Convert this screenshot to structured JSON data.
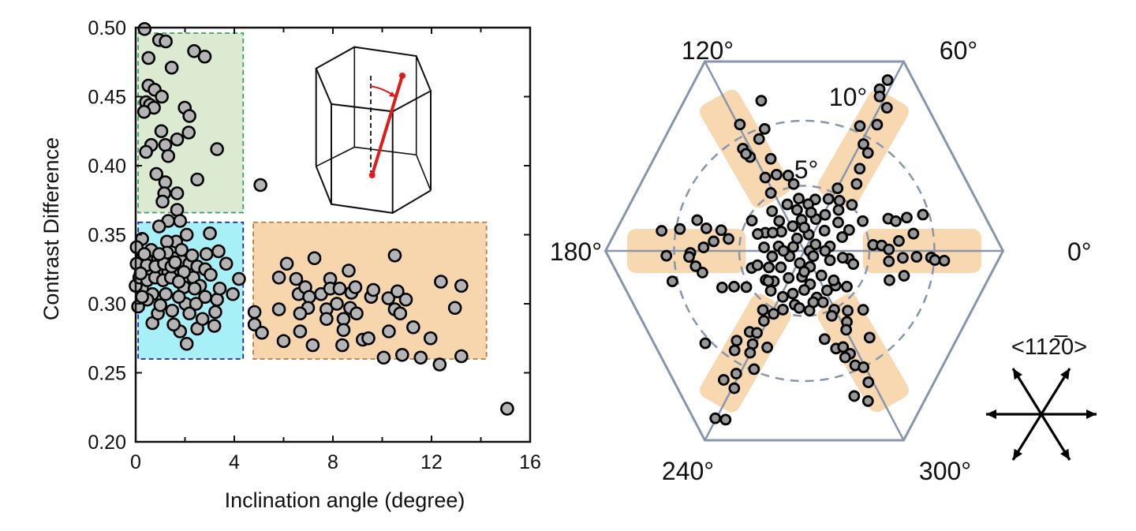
{
  "chart_data": [
    {
      "type": "scatter",
      "xlabel": "Inclination angle (degree)",
      "ylabel": "Contrast Difference",
      "xlim": [
        0,
        16
      ],
      "ylim": [
        0.2,
        0.5
      ],
      "x_ticks": [
        0,
        4,
        8,
        12,
        16
      ],
      "x_minor_ticks": [
        2,
        6,
        10,
        14
      ],
      "y_ticks": [
        "0.20",
        "0.25",
        "0.30",
        "0.35",
        "0.40",
        "0.45",
        "0.50"
      ],
      "grid": false,
      "marker_color": "#b4b4b4",
      "regions": [
        {
          "x": [
            0.1,
            4.36
          ],
          "y": [
            0.366,
            0.496
          ],
          "fill": "#dcead2",
          "stroke": "#3aa55a"
        },
        {
          "x": [
            0.1,
            4.36
          ],
          "y": [
            0.26,
            0.359
          ],
          "fill": "#a8f0f8",
          "stroke": "#1b2a9c"
        },
        {
          "x": [
            4.77,
            14.23
          ],
          "y": [
            0.26,
            0.359
          ],
          "fill": "#f7d6ae",
          "stroke": "#b87c3e"
        }
      ],
      "points": [
        [
          0.36,
          0.499
        ],
        [
          0.95,
          0.491
        ],
        [
          1.22,
          0.49
        ],
        [
          0.52,
          0.478
        ],
        [
          2.37,
          0.483
        ],
        [
          2.8,
          0.479
        ],
        [
          1.46,
          0.471
        ],
        [
          0.52,
          0.458
        ],
        [
          0.77,
          0.455
        ],
        [
          1.06,
          0.45
        ],
        [
          0.42,
          0.446
        ],
        [
          0.58,
          0.444
        ],
        [
          0.74,
          0.442
        ],
        [
          0.34,
          0.439
        ],
        [
          1.99,
          0.442
        ],
        [
          2.18,
          0.436
        ],
        [
          1.04,
          0.425
        ],
        [
          1.68,
          0.419
        ],
        [
          2.15,
          0.424
        ],
        [
          1.2,
          0.415
        ],
        [
          0.63,
          0.415
        ],
        [
          0.42,
          0.41
        ],
        [
          1.32,
          0.407
        ],
        [
          3.3,
          0.412
        ],
        [
          0.84,
          0.394
        ],
        [
          2.5,
          0.39
        ],
        [
          1.2,
          0.388
        ],
        [
          1.68,
          0.38
        ],
        [
          1.16,
          0.38
        ],
        [
          1.09,
          0.374
        ],
        [
          1.68,
          0.368
        ],
        [
          5.06,
          0.386
        ],
        [
          1.32,
          0.36
        ],
        [
          1.8,
          0.36
        ],
        [
          0.95,
          0.356
        ],
        [
          2.07,
          0.35
        ],
        [
          3.01,
          0.351
        ],
        [
          1.64,
          0.345
        ],
        [
          1.27,
          0.345
        ],
        [
          0.26,
          0.347
        ],
        [
          3.36,
          0.338
        ],
        [
          2.87,
          0.336
        ],
        [
          3.67,
          0.329
        ],
        [
          4.19,
          0.318
        ],
        [
          3.94,
          0.307
        ],
        [
          0.1,
          0.298
        ],
        [
          0.68,
          0.286
        ],
        [
          1.8,
          0.28
        ],
        [
          2.07,
          0.271
        ],
        [
          2.5,
          0.282
        ],
        [
          3.19,
          0.284
        ],
        [
          3.23,
          0.294
        ],
        [
          1.54,
          0.285
        ],
        [
          0.9,
          0.293
        ],
        [
          1.48,
          0.295
        ],
        [
          2.02,
          0.3
        ],
        [
          2.45,
          0.3
        ],
        [
          1.96,
          0.312
        ],
        [
          0.26,
          0.311
        ],
        [
          0.0,
          0.313
        ],
        [
          3.3,
          0.303
        ],
        [
          2.34,
          0.319
        ],
        [
          3.41,
          0.311
        ],
        [
          0.26,
          0.333
        ],
        [
          0.58,
          0.331
        ],
        [
          0.9,
          0.333
        ],
        [
          1.22,
          0.331
        ],
        [
          1.54,
          0.333
        ],
        [
          1.86,
          0.331
        ],
        [
          2.18,
          0.329
        ],
        [
          0.36,
          0.325
        ],
        [
          0.68,
          0.323
        ],
        [
          1.0,
          0.325
        ],
        [
          1.32,
          0.323
        ],
        [
          1.64,
          0.325
        ],
        [
          1.96,
          0.323
        ],
        [
          0.15,
          0.319
        ],
        [
          0.47,
          0.317
        ],
        [
          0.79,
          0.319
        ],
        [
          1.11,
          0.317
        ],
        [
          1.43,
          0.319
        ],
        [
          1.75,
          0.316
        ],
        [
          0.04,
          0.329
        ],
        [
          2.5,
          0.327
        ],
        [
          2.82,
          0.325
        ],
        [
          3.04,
          0.321
        ],
        [
          2.61,
          0.313
        ],
        [
          2.82,
          0.305
        ],
        [
          1.22,
          0.307
        ],
        [
          0.68,
          0.307
        ],
        [
          0.47,
          0.303
        ],
        [
          1.0,
          0.299
        ],
        [
          2.39,
          0.311
        ],
        [
          1.75,
          0.305
        ],
        [
          2.18,
          0.293
        ],
        [
          2.71,
          0.289
        ],
        [
          1.27,
          0.337
        ],
        [
          0.63,
          0.339
        ],
        [
          1.86,
          0.339
        ],
        [
          2.29,
          0.335
        ],
        [
          0.26,
          0.305
        ],
        [
          0.04,
          0.341
        ],
        [
          0.45,
          0.328
        ],
        [
          0.8,
          0.327
        ],
        [
          1.15,
          0.329
        ],
        [
          1.45,
          0.327
        ],
        [
          0.2,
          0.322
        ],
        [
          1.6,
          0.33
        ],
        [
          0.95,
          0.336
        ],
        [
          0.35,
          0.336
        ],
        [
          4.82,
          0.294
        ],
        [
          4.82,
          0.285
        ],
        [
          5.12,
          0.279
        ],
        [
          5.81,
          0.319
        ],
        [
          6.13,
          0.329
        ],
        [
          5.81,
          0.296
        ],
        [
          6.0,
          0.273
        ],
        [
          6.51,
          0.318
        ],
        [
          6.61,
          0.307
        ],
        [
          7.25,
          0.333
        ],
        [
          6.67,
          0.28
        ],
        [
          7.18,
          0.27
        ],
        [
          6.88,
          0.312
        ],
        [
          7.04,
          0.305
        ],
        [
          6.99,
          0.297
        ],
        [
          6.67,
          0.293
        ],
        [
          7.52,
          0.307
        ],
        [
          7.74,
          0.296
        ],
        [
          7.74,
          0.289
        ],
        [
          7.89,
          0.318
        ],
        [
          7.89,
          0.311
        ],
        [
          8.27,
          0.311
        ],
        [
          8.16,
          0.3
        ],
        [
          8.43,
          0.289
        ],
        [
          8.43,
          0.281
        ],
        [
          8.38,
          0.27
        ],
        [
          8.64,
          0.324
        ],
        [
          8.75,
          0.308
        ],
        [
          8.7,
          0.297
        ],
        [
          8.91,
          0.312
        ],
        [
          8.96,
          0.293
        ],
        [
          9.21,
          0.274
        ],
        [
          9.44,
          0.275
        ],
        [
          9.55,
          0.305
        ],
        [
          9.64,
          0.31
        ],
        [
          10.25,
          0.304
        ],
        [
          10.27,
          0.28
        ],
        [
          10.51,
          0.335
        ],
        [
          10.62,
          0.309
        ],
        [
          10.51,
          0.296
        ],
        [
          10.73,
          0.293
        ],
        [
          10.96,
          0.303
        ],
        [
          11.26,
          0.283
        ],
        [
          11.96,
          0.275
        ],
        [
          12.38,
          0.316
        ],
        [
          12.95,
          0.297
        ],
        [
          13.21,
          0.313
        ],
        [
          10.06,
          0.261
        ],
        [
          10.81,
          0.263
        ],
        [
          11.56,
          0.261
        ],
        [
          12.33,
          0.256
        ],
        [
          13.21,
          0.262
        ],
        [
          15.07,
          0.224
        ]
      ]
    },
    {
      "type": "scatter",
      "coordinate_system": "polar",
      "angle_labels": [
        {
          "angle": 0,
          "label": "0°"
        },
        {
          "angle": 60,
          "label": "60°"
        },
        {
          "angle": 120,
          "label": "120°"
        },
        {
          "angle": 180,
          "label": "180°"
        },
        {
          "angle": 240,
          "label": "240°"
        },
        {
          "angle": 300,
          "label": "300°"
        }
      ],
      "radial_rings": [
        {
          "value": 5,
          "label": "5°"
        },
        {
          "value": 10,
          "label": "10°"
        }
      ],
      "direction_label": "<112̅0>",
      "frame_color": "#8796ac",
      "band_color": "#f8d8b0",
      "marker_color": "#999999",
      "points_angle_inclination": [
        [
          106,
          12.0
        ],
        [
          117,
          10.9
        ],
        [
          108,
          9.85
        ],
        [
          112,
          9.27
        ],
        [
          121,
          9.16
        ],
        [
          120,
          8.33
        ],
        [
          121,
          8.7
        ],
        [
          110,
          7.53
        ],
        [
          118,
          6.38
        ],
        [
          110,
          6.23
        ],
        [
          102,
          5.92
        ],
        [
          99,
          5.2
        ],
        [
          120,
          5.14
        ],
        [
          96,
          4.04
        ],
        [
          129,
          3.93
        ],
        [
          64,
          14.6
        ],
        [
          65,
          13.7
        ],
        [
          64,
          13.2
        ],
        [
          60,
          12.7
        ],
        [
          66,
          10.5
        ],
        [
          60,
          11.2
        ],
        [
          61,
          9.38
        ],
        [
          57,
          8.98
        ],
        [
          56,
          7.62
        ],
        [
          52,
          6.53
        ],
        [
          62,
          5.45
        ],
        [
          55,
          4.71
        ],
        [
          44,
          5.09
        ],
        [
          78,
          4.04
        ],
        [
          21,
          6.91
        ],
        [
          18,
          7.39
        ],
        [
          18,
          8.28
        ],
        [
          17,
          9.53
        ],
        [
          9,
          8.49
        ],
        [
          27,
          5.04
        ],
        [
          5,
          5.31
        ],
        [
          4,
          5.96
        ],
        [
          1,
          6.5
        ],
        [
          6,
          7.31
        ],
        [
          -4,
          7.59
        ],
        [
          -3,
          8.64
        ],
        [
          -3,
          9.75
        ],
        [
          -4,
          10.06
        ],
        [
          -4,
          10.78
        ],
        [
          -7,
          6.55
        ],
        [
          -19,
          6.92
        ],
        [
          -14,
          7.9
        ],
        [
          -10,
          3.49
        ],
        [
          172,
          11.07
        ],
        [
          170,
          9.7
        ],
        [
          164,
          8.56
        ],
        [
          167,
          7.72
        ],
        [
          174,
          7.0
        ],
        [
          166,
          6.58
        ],
        [
          171,
          5.89
        ],
        [
          182,
          10.6
        ],
        [
          181,
          8.75
        ],
        [
          178,
          7.74
        ],
        [
          183,
          8.86
        ],
        [
          188,
          8.43
        ],
        [
          192,
          8.0
        ],
        [
          150,
          4.65
        ],
        [
          193,
          10.4
        ],
        [
          204,
          6.91
        ],
        [
          207,
          6.05
        ],
        [
          212,
          5.25
        ],
        [
          198,
          4.25
        ],
        [
          197,
          3.76
        ],
        [
          217,
          3.71
        ],
        [
          235,
          5.54
        ],
        [
          244,
          5.38
        ],
        [
          240,
          6.2
        ],
        [
          236,
          7.5
        ],
        [
          240,
          7.27
        ],
        [
          233,
          8.63
        ],
        [
          241,
          8.18
        ],
        [
          249,
          7.94
        ],
        [
          235,
          9.33
        ],
        [
          242,
          8.86
        ],
        [
          223,
          10.4
        ],
        [
          247,
          9.87
        ],
        [
          241,
          10.78
        ],
        [
          238,
          11.68
        ],
        [
          243,
          11.84
        ],
        [
          242,
          14.56
        ],
        [
          245,
          14.3
        ],
        [
          297,
          5.07
        ],
        [
          306,
          5.68
        ],
        [
          315,
          6.4
        ],
        [
          293,
          5.42
        ],
        [
          301,
          6.36
        ],
        [
          298,
          6.86
        ],
        [
          283,
          6.95
        ],
        [
          288,
          7.89
        ],
        [
          292,
          7.97
        ],
        [
          294,
          8.65
        ],
        [
          291,
          8.76
        ],
        [
          307,
          8.34
        ],
        [
          294,
          9.62
        ],
        [
          297,
          10.03
        ],
        [
          296,
          11.23
        ],
        [
          289,
          11.79
        ],
        [
          293,
          12.53
        ],
        [
          312,
          3.59
        ],
        [
          320,
          4.27
        ],
        [
          0,
          0.4
        ],
        [
          30,
          1.0
        ],
        [
          75,
          1.3
        ],
        [
          120,
          1.1
        ],
        [
          160,
          0.9
        ],
        [
          200,
          1.2
        ],
        [
          250,
          1.0
        ],
        [
          290,
          1.3
        ],
        [
          330,
          0.8
        ],
        [
          10,
          2.0
        ],
        [
          45,
          2.2
        ],
        [
          70,
          2.6
        ],
        [
          95,
          2.4
        ],
        [
          115,
          2.1
        ],
        [
          140,
          2.3
        ],
        [
          170,
          2.0
        ],
        [
          190,
          2.5
        ],
        [
          215,
          2.2
        ],
        [
          240,
          2.4
        ],
        [
          265,
          2.0
        ],
        [
          280,
          2.6
        ],
        [
          305,
          2.3
        ],
        [
          340,
          2.1
        ],
        [
          20,
          3.1
        ],
        [
          40,
          3.4
        ],
        [
          60,
          3.2
        ],
        [
          85,
          3.6
        ],
        [
          100,
          3.2
        ],
        [
          130,
          3.0
        ],
        [
          155,
          3.3
        ],
        [
          175,
          3.1
        ],
        [
          205,
          3.0
        ],
        [
          225,
          3.3
        ],
        [
          255,
          3.4
        ],
        [
          270,
          3.0
        ],
        [
          285,
          3.7
        ],
        [
          315,
          3.2
        ],
        [
          350,
          3.0
        ],
        [
          50,
          4.1
        ],
        [
          65,
          4.4
        ],
        [
          80,
          3.0
        ],
        [
          260,
          4.2
        ],
        [
          275,
          4.6
        ],
        [
          250,
          4.8
        ],
        [
          265,
          4.4
        ],
        [
          290,
          4.2
        ],
        [
          245,
          3.9
        ],
        [
          230,
          4.0
        ],
        [
          280,
          4.0
        ],
        [
          300,
          3.5
        ],
        [
          25,
          3.8
        ],
        [
          345,
          3.9
        ],
        [
          160,
          3.8
        ],
        [
          150,
          2.8
        ],
        [
          110,
          3.8
        ],
        [
          90,
          1.8
        ],
        [
          180,
          1.6
        ],
        [
          270,
          1.6
        ],
        [
          0,
          1.6
        ],
        [
          220,
          3.6
        ]
      ]
    }
  ]
}
